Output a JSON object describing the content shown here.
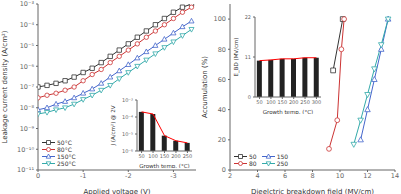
{
  "chart_data": [
    {
      "type": "line",
      "xlabel": "Applied voltage (V)",
      "ylabel": "Leakage current density (A/cm²)",
      "log": "y",
      "legend": "lower left",
      "x": [
        0,
        -0.2,
        -0.4,
        -0.6,
        -0.8,
        -1.0,
        -1.2,
        -1.4,
        -1.6,
        -1.8,
        -2.0,
        -2.2,
        -2.4,
        -2.6,
        -2.8,
        -3.0,
        -3.2,
        -3.4
      ],
      "xlim": [
        0,
        -3.5
      ],
      "xticks": [
        0,
        -1,
        -2,
        -3
      ],
      "ylim": [
        1e-11,
        0.001
      ],
      "yticks": [
        {
          "value": 1e-11,
          "label": "10⁻¹¹"
        },
        {
          "value": 1e-10,
          "label": "10⁻¹⁰"
        },
        {
          "value": 1e-09,
          "label": "10⁻⁹"
        },
        {
          "value": 1e-08,
          "label": "10⁻⁸"
        },
        {
          "value": 1e-07,
          "label": "10⁻⁷"
        },
        {
          "value": 1e-06,
          "label": "10⁻⁶"
        },
        {
          "value": 1e-05,
          "label": "10⁻⁵"
        },
        {
          "value": 0.0001,
          "label": "10⁻⁴"
        },
        {
          "value": 0.001,
          "label": "10⁻³"
        }
      ],
      "series": [
        {
          "name": "50°C",
          "color": "#333333",
          "marker": "square",
          "values": [
            1e-07,
            1.2e-07,
            1.5e-07,
            2e-07,
            3e-07,
            5e-07,
            8e-07,
            1.5e-06,
            3e-06,
            6e-06,
            1.2e-05,
            2.5e-05,
            5e-05,
            0.0001,
            0.0002,
            0.0004,
            0.0007,
            0.001
          ]
        },
        {
          "name": "80°C",
          "color": "#cc3333",
          "marker": "circle",
          "values": [
            3e-08,
            4e-08,
            5e-08,
            7e-08,
            1e-07,
            2e-07,
            4e-07,
            7e-07,
            1.5e-06,
            3e-06,
            6e-06,
            1.2e-05,
            2.5e-05,
            5e-05,
            0.0001,
            0.0002,
            0.0004,
            0.0007
          ]
        },
        {
          "name": "150°C",
          "color": "#4466cc",
          "marker": "triangle_up",
          "values": [
            8e-09,
            1e-08,
            1.5e-08,
            2e-08,
            3e-08,
            5e-08,
            8e-08,
            1.5e-07,
            3e-07,
            6e-07,
            1.2e-06,
            2.5e-06,
            5e-06,
            1e-05,
            2e-05,
            4e-05,
            8e-05,
            0.00015
          ]
        },
        {
          "name": "250°C",
          "color": "#33aaaa",
          "marker": "triangle_down",
          "values": [
            5e-09,
            6e-09,
            8e-09,
            1e-08,
            1.5e-08,
            2.5e-08,
            4e-08,
            7e-08,
            1.2e-07,
            2.5e-07,
            5e-07,
            1e-06,
            2e-06,
            4e-06,
            8e-06,
            1.5e-05,
            3e-05,
            6e-05
          ]
        }
      ]
    },
    {
      "type": "bar",
      "xlabel": "Growth temp. (°C)",
      "ylabel": "J (A/cm²) @ 2V",
      "log": "y",
      "x": [
        50,
        100,
        150,
        200,
        250
      ],
      "xlim": [
        30,
        270
      ],
      "xticks": [
        50,
        100,
        150,
        200,
        250
      ],
      "ylim": [
        1e-06,
        0.001
      ],
      "yticks": [
        {
          "value": 1e-06,
          "label": "10⁻⁶"
        },
        {
          "value": 1e-05,
          "label": "10⁻⁵"
        },
        {
          "value": 0.0001,
          "label": "10⁻⁴"
        },
        {
          "value": 0.001,
          "label": "10⁻³"
        }
      ],
      "series": [
        {
          "type": "bar",
          "color": "#222222",
          "values": [
            0.0002,
            0.00015,
            8e-06,
            4e-06,
            3e-06
          ]
        },
        {
          "type": "line",
          "color": "red",
          "values": [
            0.0002,
            0.00015,
            8e-06,
            4e-06,
            3e-06
          ]
        }
      ]
    },
    {
      "type": "line",
      "xlabel": "Dieelctric breakdown field (MV/cm)",
      "ylabel": "Accumulation (%)",
      "legend": "lower left",
      "xlim": [
        2,
        14
      ],
      "xticks": [
        2,
        4,
        6,
        8,
        10,
        12,
        14
      ],
      "ylim": [
        0,
        110
      ],
      "yticks": [
        0,
        20,
        40,
        60,
        80,
        100
      ],
      "series": [
        {
          "name": "50",
          "color": "#333333",
          "marker": "square",
          "x": [
            9.5,
            10.2
          ],
          "values": [
            66,
            100
          ]
        },
        {
          "name": "80",
          "color": "#cc3333",
          "marker": "circle",
          "x": [
            9.2,
            9.8,
            10.1,
            10.3
          ],
          "values": [
            14,
            33,
            80,
            100
          ]
        },
        {
          "name": "150",
          "color": "#4466cc",
          "marker": "triangle_up",
          "x": [
            11.5,
            12.0,
            12.5,
            13.0,
            13.5
          ],
          "values": [
            20,
            40,
            60,
            80,
            100
          ]
        },
        {
          "name": "250",
          "color": "#33aaaa",
          "marker": "triangle_down",
          "x": [
            11.0,
            11.5,
            12.0,
            12.5,
            13.0,
            13.5
          ],
          "values": [
            17,
            33,
            50,
            67,
            83,
            100
          ]
        }
      ]
    },
    {
      "type": "bar",
      "xlabel": "Growth temp. (°C)",
      "ylabel": "E_BD (MV/cm)",
      "x": [
        50,
        100,
        150,
        200,
        250,
        300
      ],
      "xlim": [
        30,
        320
      ],
      "xticks": [
        50,
        100,
        150,
        200,
        250,
        300
      ],
      "ylim": [
        0,
        22
      ],
      "yticks": [
        0,
        11,
        22
      ],
      "series": [
        {
          "type": "bar",
          "color": "#222222",
          "values": [
            10.0,
            10.2,
            10.5,
            10.5,
            10.8,
            10.8
          ]
        },
        {
          "type": "line",
          "color": "red",
          "values": [
            10.0,
            10.2,
            10.5,
            10.5,
            10.8,
            10.8
          ]
        }
      ]
    }
  ]
}
